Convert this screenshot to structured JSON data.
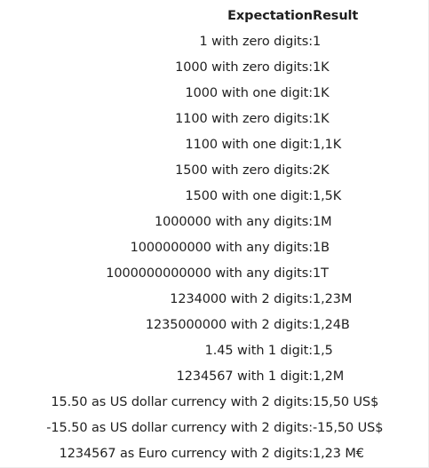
{
  "table": {
    "headers": {
      "expectation": "Expectation",
      "result": "Result"
    },
    "rows": [
      {
        "expectation": "1 with zero digits:",
        "result": "1"
      },
      {
        "expectation": "1000 with zero digits:",
        "result": "1K"
      },
      {
        "expectation": "1000 with one digit:",
        "result": "1K"
      },
      {
        "expectation": "1100 with zero digits:",
        "result": "1K"
      },
      {
        "expectation": "1100 with one digit:",
        "result": "1,1K"
      },
      {
        "expectation": "1500 with zero digits:",
        "result": "2K"
      },
      {
        "expectation": "1500 with one digit:",
        "result": "1,5K"
      },
      {
        "expectation": "1000000 with any digits:",
        "result": "1M"
      },
      {
        "expectation": "1000000000 with any digits:",
        "result": "1B"
      },
      {
        "expectation": "1000000000000 with any digits:",
        "result": "1T"
      },
      {
        "expectation": "1234000 with 2 digits:",
        "result": "1,23M"
      },
      {
        "expectation": "1235000000 with 2 digits:",
        "result": "1,24B"
      },
      {
        "expectation": "1.45 with 1 digit:",
        "result": "1,5"
      },
      {
        "expectation": "1234567 with 1 digit:",
        "result": "1,2M"
      },
      {
        "expectation": "15.50 as US dollar currency with 2 digits:",
        "result": "15,50 US$"
      },
      {
        "expectation": "-15.50 as US dollar currency with 2 digits:",
        "result": "-15,50 US$"
      },
      {
        "expectation": "1234567 as Euro currency with 2 digits:",
        "result": "1,23 M€"
      }
    ]
  },
  "colors": {
    "text": "#1f1f1f",
    "background": "#ffffff",
    "border": "#ececec"
  }
}
